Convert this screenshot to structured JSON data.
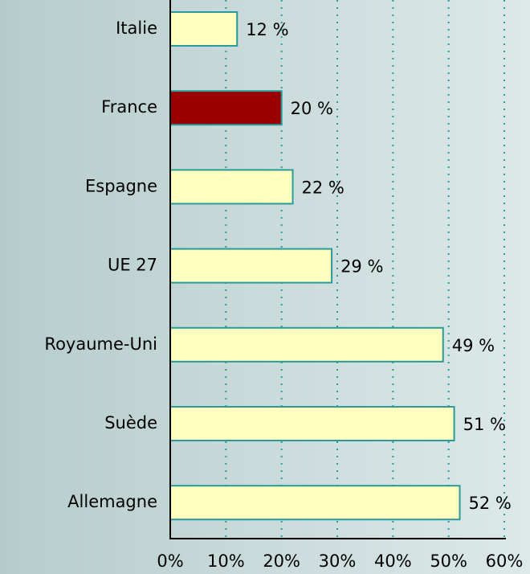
{
  "chart_data": {
    "type": "barh",
    "categories": [
      "Italie",
      "France",
      "Espagne",
      "UE 27",
      "Royaume-Uni",
      "Suède",
      "Allemagne"
    ],
    "values": [
      12,
      20,
      22,
      29,
      49,
      51,
      52
    ],
    "value_labels": [
      "12 %",
      "20 %",
      "22 %",
      "29 %",
      "49 %",
      "51 %",
      "52 %"
    ],
    "colors": [
      "#ffffc0",
      "#990000",
      "#ffffc0",
      "#ffffc0",
      "#ffffc0",
      "#ffffc0",
      "#ffffc0"
    ],
    "xlim": [
      0,
      60
    ],
    "xticks": [
      {
        "value": 0,
        "label": "0%"
      },
      {
        "value": 10,
        "label": "10%"
      },
      {
        "value": 20,
        "label": "20%"
      },
      {
        "value": 30,
        "label": "30%"
      },
      {
        "value": 40,
        "label": "40%"
      },
      {
        "value": 50,
        "label": "50%"
      },
      {
        "value": 60,
        "label": "60%"
      }
    ],
    "grid": true
  }
}
